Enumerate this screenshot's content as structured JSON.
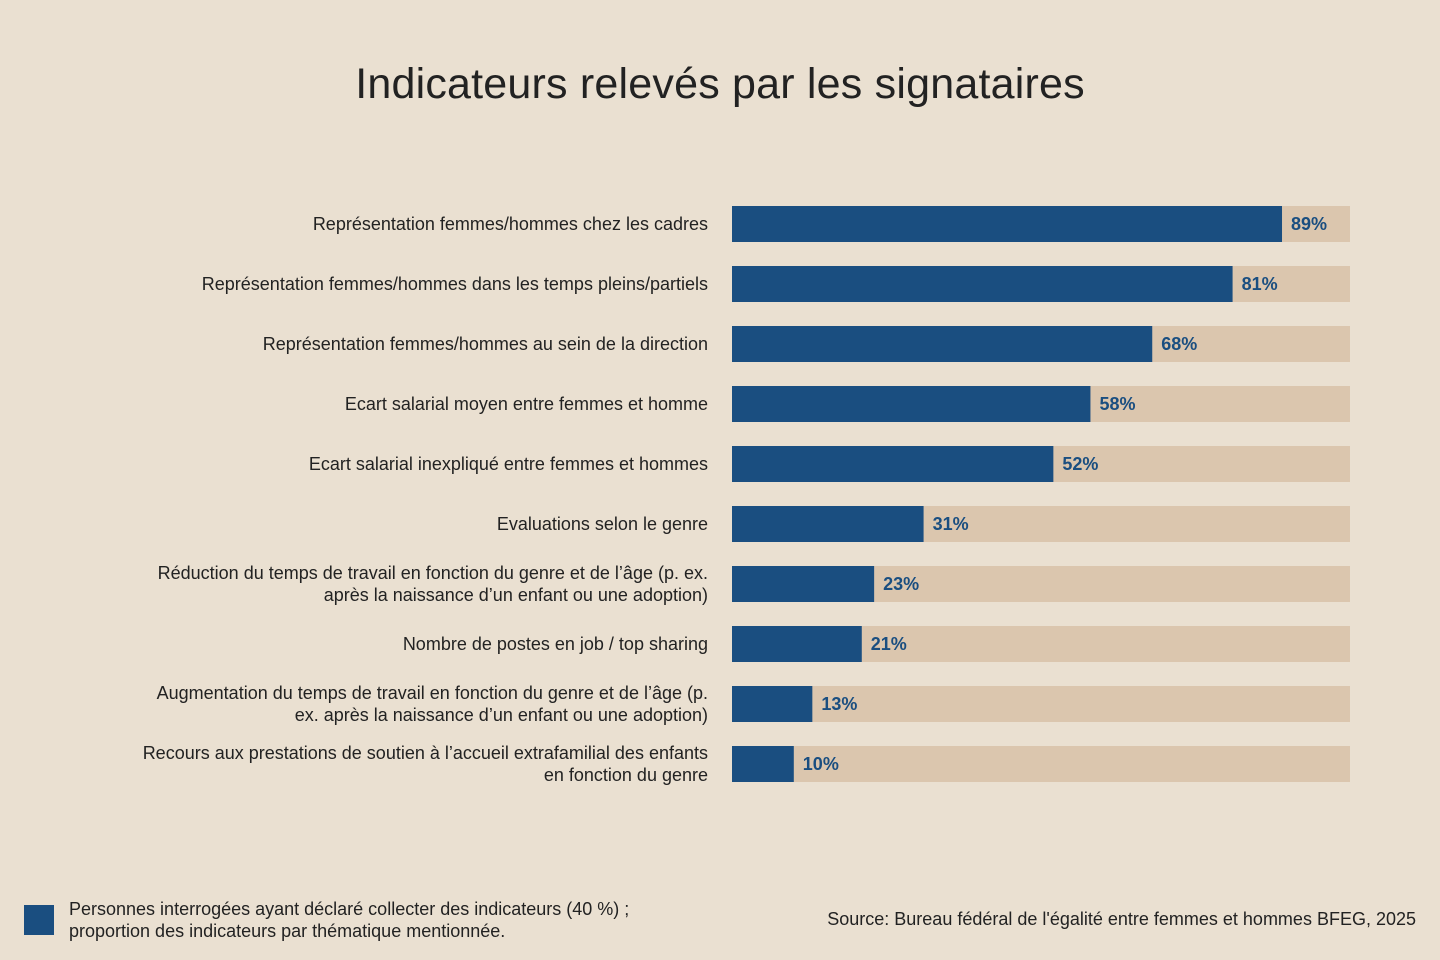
{
  "colors": {
    "bar": "#1a4e80",
    "track": "#dbc6ae",
    "background": "#eae0d1",
    "value_label": "#1a4e80"
  },
  "chart_data": {
    "type": "bar",
    "orientation": "horizontal",
    "title": "Indicateurs relevés par les signataires",
    "categories": [
      "Représentation femmes/hommes chez les cadres",
      "Représentation femmes/hommes dans les temps pleins/partiels",
      "Représentation femmes/hommes au sein de la direction",
      "Ecart salarial moyen entre femmes et homme",
      "Ecart salarial inexpliqué entre femmes et hommes",
      "Evaluations selon le genre",
      "Réduction du temps de travail en fonction du genre et de l’âge (p. ex.\naprès la naissance d’un enfant ou une adoption)",
      "Nombre de postes en job / top sharing",
      "Augmentation du temps de travail en fonction du genre et de l’âge (p.\nex. après la naissance d’un enfant ou une adoption)",
      "Recours aux prestations de soutien à l’accueil extrafamilial des enfants\nen fonction du genre"
    ],
    "values": [
      89,
      81,
      68,
      58,
      52,
      31,
      23,
      21,
      13,
      10
    ],
    "value_labels": [
      "89%",
      "81%",
      "68%",
      "58%",
      "52%",
      "31%",
      "23%",
      "21%",
      "13%",
      "10%"
    ],
    "xlim": [
      0,
      100
    ],
    "grid": false,
    "legend_placement": "bottom-left"
  },
  "legend": {
    "text": "Personnes interrogées ayant déclaré collecter des indicateurs (40 %) ;\nproportion des indicateurs par thématique mentionnée."
  },
  "source": "Source: Bureau fédéral de l'égalité entre femmes et hommes BFEG, 2025"
}
